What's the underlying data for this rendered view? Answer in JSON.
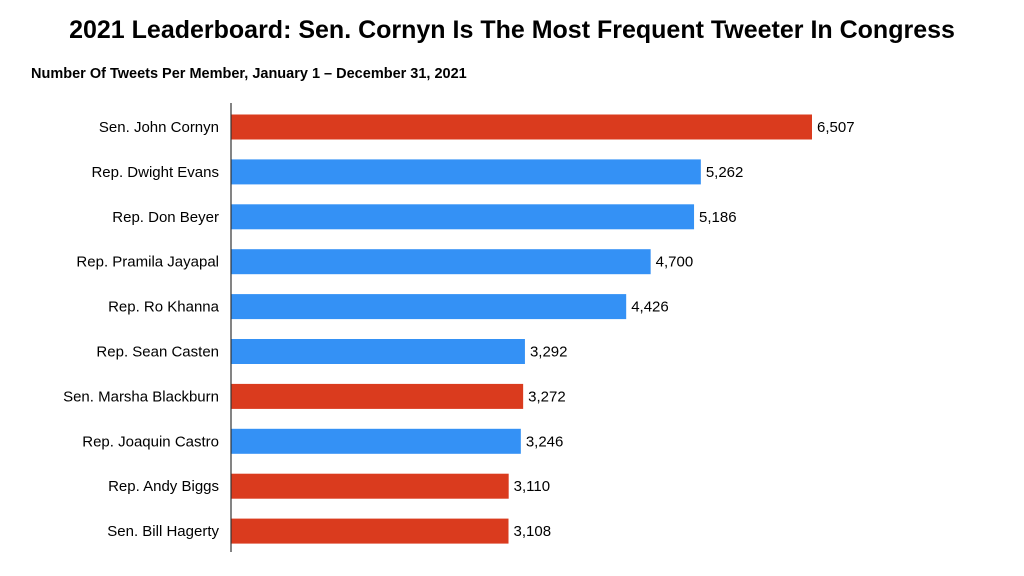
{
  "header": {
    "title": "2021 Leaderboard: Sen. Cornyn Is The Most Frequent Tweeter In Congress",
    "subtitle": "Number Of Tweets Per Member, January 1 – December 31, 2021"
  },
  "colors": {
    "republican": "#DA3B1E",
    "democrat": "#3491F5",
    "axis": "#333333"
  },
  "chart_data": {
    "type": "bar",
    "orientation": "horizontal",
    "title": "2021 Leaderboard: Sen. Cornyn Is The Most Frequent Tweeter In Congress",
    "subtitle": "Number Of Tweets Per Member, January 1 – December 31, 2021",
    "xlabel": "",
    "ylabel": "",
    "xlim": [
      0,
      7500
    ],
    "grid": false,
    "legend": "none",
    "categories": [
      "Sen. John Cornyn",
      "Rep. Dwight Evans",
      "Rep. Don Beyer",
      "Rep. Pramila Jayapal",
      "Rep. Ro Khanna",
      "Rep. Sean Casten",
      "Sen. Marsha Blackburn",
      "Rep. Joaquin Castro",
      "Rep. Andy Biggs",
      "Sen. Bill Hagerty"
    ],
    "values": [
      6507,
      5262,
      5186,
      4700,
      4426,
      3292,
      3272,
      3246,
      3110,
      3108
    ],
    "value_labels": [
      "6,507",
      "5,262",
      "5,186",
      "4,700",
      "4,426",
      "3,292",
      "3,272",
      "3,246",
      "3,110",
      "3,108"
    ],
    "bar_colors": [
      "#DA3B1E",
      "#3491F5",
      "#3491F5",
      "#3491F5",
      "#3491F5",
      "#3491F5",
      "#DA3B1E",
      "#3491F5",
      "#DA3B1E",
      "#DA3B1E"
    ]
  }
}
